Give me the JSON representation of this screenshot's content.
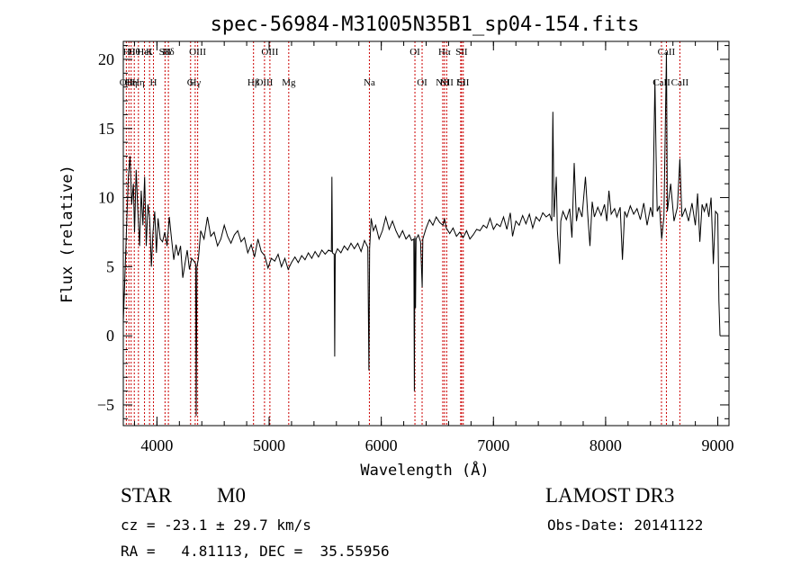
{
  "chart_data": {
    "type": "line",
    "title": "spec-56984-M31005N35B1_sp04-154.fits",
    "xlabel": "Wavelength (Å)",
    "ylabel": "Flux (relative)",
    "xlim": [
      3700,
      9100
    ],
    "ylim": [
      -6.5,
      21.3
    ],
    "x_ticks": [
      4000,
      5000,
      6000,
      7000,
      8000,
      9000
    ],
    "x_tick_labels": [
      "4000",
      "5000",
      "6000",
      "7000",
      "8000",
      "9000"
    ],
    "y_ticks": [
      -5,
      0,
      5,
      10,
      15,
      20
    ],
    "y_tick_labels": [
      "−5",
      "0",
      "5",
      "10",
      "15",
      "20"
    ],
    "grid": false,
    "line_color": "#000000",
    "marker_color": "#cc0000",
    "series": [
      {
        "name": "",
        "points": [
          [
            3700,
            1.0
          ],
          [
            3715,
            4.5
          ],
          [
            3730,
            8.0
          ],
          [
            3745,
            11.5
          ],
          [
            3760,
            13.0
          ],
          [
            3775,
            9.5
          ],
          [
            3790,
            11.0
          ],
          [
            3800,
            7.5
          ],
          [
            3815,
            12.0
          ],
          [
            3830,
            9.0
          ],
          [
            3845,
            6.5
          ],
          [
            3860,
            10.5
          ],
          [
            3875,
            8.0
          ],
          [
            3890,
            11.5
          ],
          [
            3905,
            6.5
          ],
          [
            3920,
            9.5
          ],
          [
            3935,
            8.5
          ],
          [
            3950,
            5.0
          ],
          [
            3965,
            7.5
          ],
          [
            3980,
            9.0
          ],
          [
            3995,
            6.0
          ],
          [
            4010,
            8.5
          ],
          [
            4030,
            7.0
          ],
          [
            4050,
            6.8
          ],
          [
            4070,
            7.5
          ],
          [
            4090,
            6.5
          ],
          [
            4110,
            8.6
          ],
          [
            4130,
            7.0
          ],
          [
            4150,
            5.5
          ],
          [
            4170,
            6.6
          ],
          [
            4190,
            5.8
          ],
          [
            4210,
            6.5
          ],
          [
            4230,
            4.2
          ],
          [
            4250,
            5.2
          ],
          [
            4270,
            6.2
          ],
          [
            4290,
            4.8
          ],
          [
            4310,
            5.6
          ],
          [
            4330,
            5.4
          ],
          [
            4345,
            5.2
          ],
          [
            4350,
            -5.8
          ],
          [
            4356,
            5.0
          ],
          [
            4370,
            5.6
          ],
          [
            4390,
            7.6
          ],
          [
            4420,
            7.0
          ],
          [
            4450,
            8.6
          ],
          [
            4480,
            7.2
          ],
          [
            4510,
            7.5
          ],
          [
            4540,
            6.5
          ],
          [
            4570,
            7.0
          ],
          [
            4600,
            8.0
          ],
          [
            4630,
            7.2
          ],
          [
            4660,
            6.7
          ],
          [
            4690,
            7.3
          ],
          [
            4720,
            7.6
          ],
          [
            4750,
            6.8
          ],
          [
            4780,
            7.1
          ],
          [
            4810,
            6.0
          ],
          [
            4840,
            6.6
          ],
          [
            4870,
            5.7
          ],
          [
            4900,
            7.0
          ],
          [
            4930,
            6.1
          ],
          [
            4960,
            5.8
          ],
          [
            4990,
            4.9
          ],
          [
            5020,
            5.6
          ],
          [
            5050,
            5.4
          ],
          [
            5080,
            5.9
          ],
          [
            5110,
            5.0
          ],
          [
            5140,
            5.6
          ],
          [
            5170,
            4.8
          ],
          [
            5200,
            5.3
          ],
          [
            5230,
            5.7
          ],
          [
            5260,
            5.3
          ],
          [
            5290,
            5.8
          ],
          [
            5320,
            5.5
          ],
          [
            5350,
            6.0
          ],
          [
            5380,
            5.6
          ],
          [
            5410,
            6.1
          ],
          [
            5440,
            5.7
          ],
          [
            5470,
            6.2
          ],
          [
            5500,
            5.9
          ],
          [
            5530,
            6.2
          ],
          [
            5555,
            6.1
          ],
          [
            5560,
            11.5
          ],
          [
            5565,
            6.0
          ],
          [
            5580,
            5.9
          ],
          [
            5585,
            -1.5
          ],
          [
            5590,
            5.9
          ],
          [
            5610,
            6.3
          ],
          [
            5640,
            6.0
          ],
          [
            5670,
            6.5
          ],
          [
            5700,
            6.2
          ],
          [
            5730,
            6.7
          ],
          [
            5760,
            6.3
          ],
          [
            5790,
            6.7
          ],
          [
            5820,
            6.1
          ],
          [
            5850,
            6.9
          ],
          [
            5880,
            6.4
          ],
          [
            5890,
            -2.5
          ],
          [
            5896,
            6.3
          ],
          [
            5910,
            8.5
          ],
          [
            5930,
            7.6
          ],
          [
            5950,
            8.0
          ],
          [
            5980,
            7.0
          ],
          [
            6010,
            7.6
          ],
          [
            6040,
            8.6
          ],
          [
            6070,
            7.7
          ],
          [
            6100,
            8.3
          ],
          [
            6130,
            7.6
          ],
          [
            6160,
            7.1
          ],
          [
            6190,
            7.6
          ],
          [
            6220,
            7.0
          ],
          [
            6250,
            7.3
          ],
          [
            6270,
            6.9
          ],
          [
            6290,
            7.0
          ],
          [
            6295,
            -4.0
          ],
          [
            6300,
            7.2
          ],
          [
            6305,
            2.0
          ],
          [
            6310,
            7.0
          ],
          [
            6330,
            7.3
          ],
          [
            6350,
            6.8
          ],
          [
            6365,
            3.5
          ],
          [
            6370,
            7.0
          ],
          [
            6400,
            7.8
          ],
          [
            6430,
            8.4
          ],
          [
            6460,
            8.0
          ],
          [
            6490,
            8.6
          ],
          [
            6520,
            8.2
          ],
          [
            6550,
            8.0
          ],
          [
            6563,
            8.5
          ],
          [
            6580,
            7.8
          ],
          [
            6610,
            7.4
          ],
          [
            6640,
            7.8
          ],
          [
            6670,
            7.2
          ],
          [
            6700,
            7.5
          ],
          [
            6730,
            7.1
          ],
          [
            6760,
            7.6
          ],
          [
            6790,
            7.0
          ],
          [
            6820,
            7.3
          ],
          [
            6850,
            7.7
          ],
          [
            6880,
            7.6
          ],
          [
            6910,
            8.0
          ],
          [
            6940,
            7.8
          ],
          [
            6970,
            8.5
          ],
          [
            7000,
            7.7
          ],
          [
            7030,
            8.1
          ],
          [
            7060,
            7.9
          ],
          [
            7090,
            8.6
          ],
          [
            7120,
            7.7
          ],
          [
            7150,
            8.9
          ],
          [
            7170,
            7.2
          ],
          [
            7200,
            8.3
          ],
          [
            7230,
            8.0
          ],
          [
            7260,
            8.7
          ],
          [
            7290,
            8.1
          ],
          [
            7320,
            8.8
          ],
          [
            7350,
            7.8
          ],
          [
            7380,
            8.6
          ],
          [
            7410,
            8.3
          ],
          [
            7440,
            8.9
          ],
          [
            7470,
            8.6
          ],
          [
            7500,
            8.8
          ],
          [
            7520,
            8.3
          ],
          [
            7530,
            16.2
          ],
          [
            7540,
            8.6
          ],
          [
            7560,
            11.5
          ],
          [
            7570,
            7.6
          ],
          [
            7590,
            5.2
          ],
          [
            7600,
            8.3
          ],
          [
            7620,
            9.0
          ],
          [
            7650,
            8.4
          ],
          [
            7680,
            9.2
          ],
          [
            7700,
            7.1
          ],
          [
            7720,
            12.5
          ],
          [
            7740,
            8.3
          ],
          [
            7760,
            9.3
          ],
          [
            7790,
            8.6
          ],
          [
            7820,
            11.5
          ],
          [
            7840,
            8.8
          ],
          [
            7860,
            6.5
          ],
          [
            7880,
            9.7
          ],
          [
            7900,
            8.6
          ],
          [
            7930,
            9.3
          ],
          [
            7960,
            8.7
          ],
          [
            7990,
            9.5
          ],
          [
            8010,
            8.3
          ],
          [
            8030,
            10.5
          ],
          [
            8050,
            8.8
          ],
          [
            8080,
            9.2
          ],
          [
            8100,
            8.6
          ],
          [
            8130,
            9.3
          ],
          [
            8150,
            5.5
          ],
          [
            8170,
            9.0
          ],
          [
            8190,
            8.6
          ],
          [
            8220,
            9.4
          ],
          [
            8250,
            8.8
          ],
          [
            8280,
            9.2
          ],
          [
            8310,
            8.4
          ],
          [
            8340,
            9.6
          ],
          [
            8370,
            8.0
          ],
          [
            8400,
            9.3
          ],
          [
            8420,
            8.6
          ],
          [
            8440,
            18.5
          ],
          [
            8450,
            13.0
          ],
          [
            8460,
            9.0
          ],
          [
            8480,
            9.4
          ],
          [
            8500,
            7.0
          ],
          [
            8520,
            8.6
          ],
          [
            8542,
            20.5
          ],
          [
            8550,
            9.0
          ],
          [
            8580,
            11.0
          ],
          [
            8610,
            8.3
          ],
          [
            8640,
            9.3
          ],
          [
            8662,
            12.8
          ],
          [
            8680,
            8.6
          ],
          [
            8710,
            9.2
          ],
          [
            8740,
            8.3
          ],
          [
            8770,
            9.6
          ],
          [
            8800,
            8.0
          ],
          [
            8820,
            10.3
          ],
          [
            8840,
            6.8
          ],
          [
            8860,
            9.5
          ],
          [
            8880,
            9.0
          ],
          [
            8900,
            9.6
          ],
          [
            8920,
            8.6
          ],
          [
            8940,
            10.0
          ],
          [
            8960,
            5.2
          ],
          [
            8980,
            9.0
          ],
          [
            9000,
            8.8
          ],
          [
            9010,
            2.5
          ],
          [
            9020,
            0.0
          ]
        ]
      }
    ],
    "line_markers": [
      {
        "x": 3727,
        "label": "OII",
        "row": 1
      },
      {
        "x": 3750,
        "label": "Hθ",
        "row": 0
      },
      {
        "x": 3770,
        "label": "Hη",
        "row": 1
      },
      {
        "x": 3798,
        "label": "Hθ",
        "row": 0
      },
      {
        "x": 3835,
        "label": "Hη",
        "row": 1
      },
      {
        "x": 3889,
        "label": "HeI",
        "row": 0
      },
      {
        "x": 3934,
        "label": "K",
        "row": 0
      },
      {
        "x": 3969,
        "label": "H",
        "row": 1
      },
      {
        "x": 4072,
        "label": "SII",
        "row": 0
      },
      {
        "x": 4102,
        "label": "Hδ",
        "row": 0
      },
      {
        "x": 4300,
        "label": "G",
        "row": 1
      },
      {
        "x": 4341,
        "label": "Hγ",
        "row": 1
      },
      {
        "x": 4363,
        "label": "OIII",
        "row": 0
      },
      {
        "x": 4861,
        "label": "Hβ",
        "row": 1
      },
      {
        "x": 4959,
        "label": "OIII",
        "row": 1
      },
      {
        "x": 5007,
        "label": "OIII",
        "row": 0
      },
      {
        "x": 5175,
        "label": "Mg",
        "row": 1
      },
      {
        "x": 5894,
        "label": "Na",
        "row": 1
      },
      {
        "x": 6300,
        "label": "OI",
        "row": 0
      },
      {
        "x": 6364,
        "label": "OI",
        "row": 1
      },
      {
        "x": 6548,
        "label": "NII",
        "row": 1
      },
      {
        "x": 6563,
        "label": "Hα",
        "row": 0
      },
      {
        "x": 6583,
        "label": "NII",
        "row": 1
      },
      {
        "x": 6708,
        "label": "Li",
        "row": 1
      },
      {
        "x": 6716,
        "label": "SII",
        "row": 0
      },
      {
        "x": 6731,
        "label": "SII",
        "row": 1
      },
      {
        "x": 8498,
        "label": "CaII",
        "row": 1
      },
      {
        "x": 8542,
        "label": "CaII",
        "row": 0
      },
      {
        "x": 8662,
        "label": "CaII",
        "row": 1
      }
    ]
  },
  "info": {
    "class_label": "STAR",
    "subclass_label": "M0",
    "survey_label": "LAMOST DR3",
    "cz_text": "cz = -23.1 ± 29.7 km/s",
    "obs_date_text": "Obs-Date: 20141122",
    "radec_text": "RA =   4.81113, DEC =  35.55956"
  }
}
